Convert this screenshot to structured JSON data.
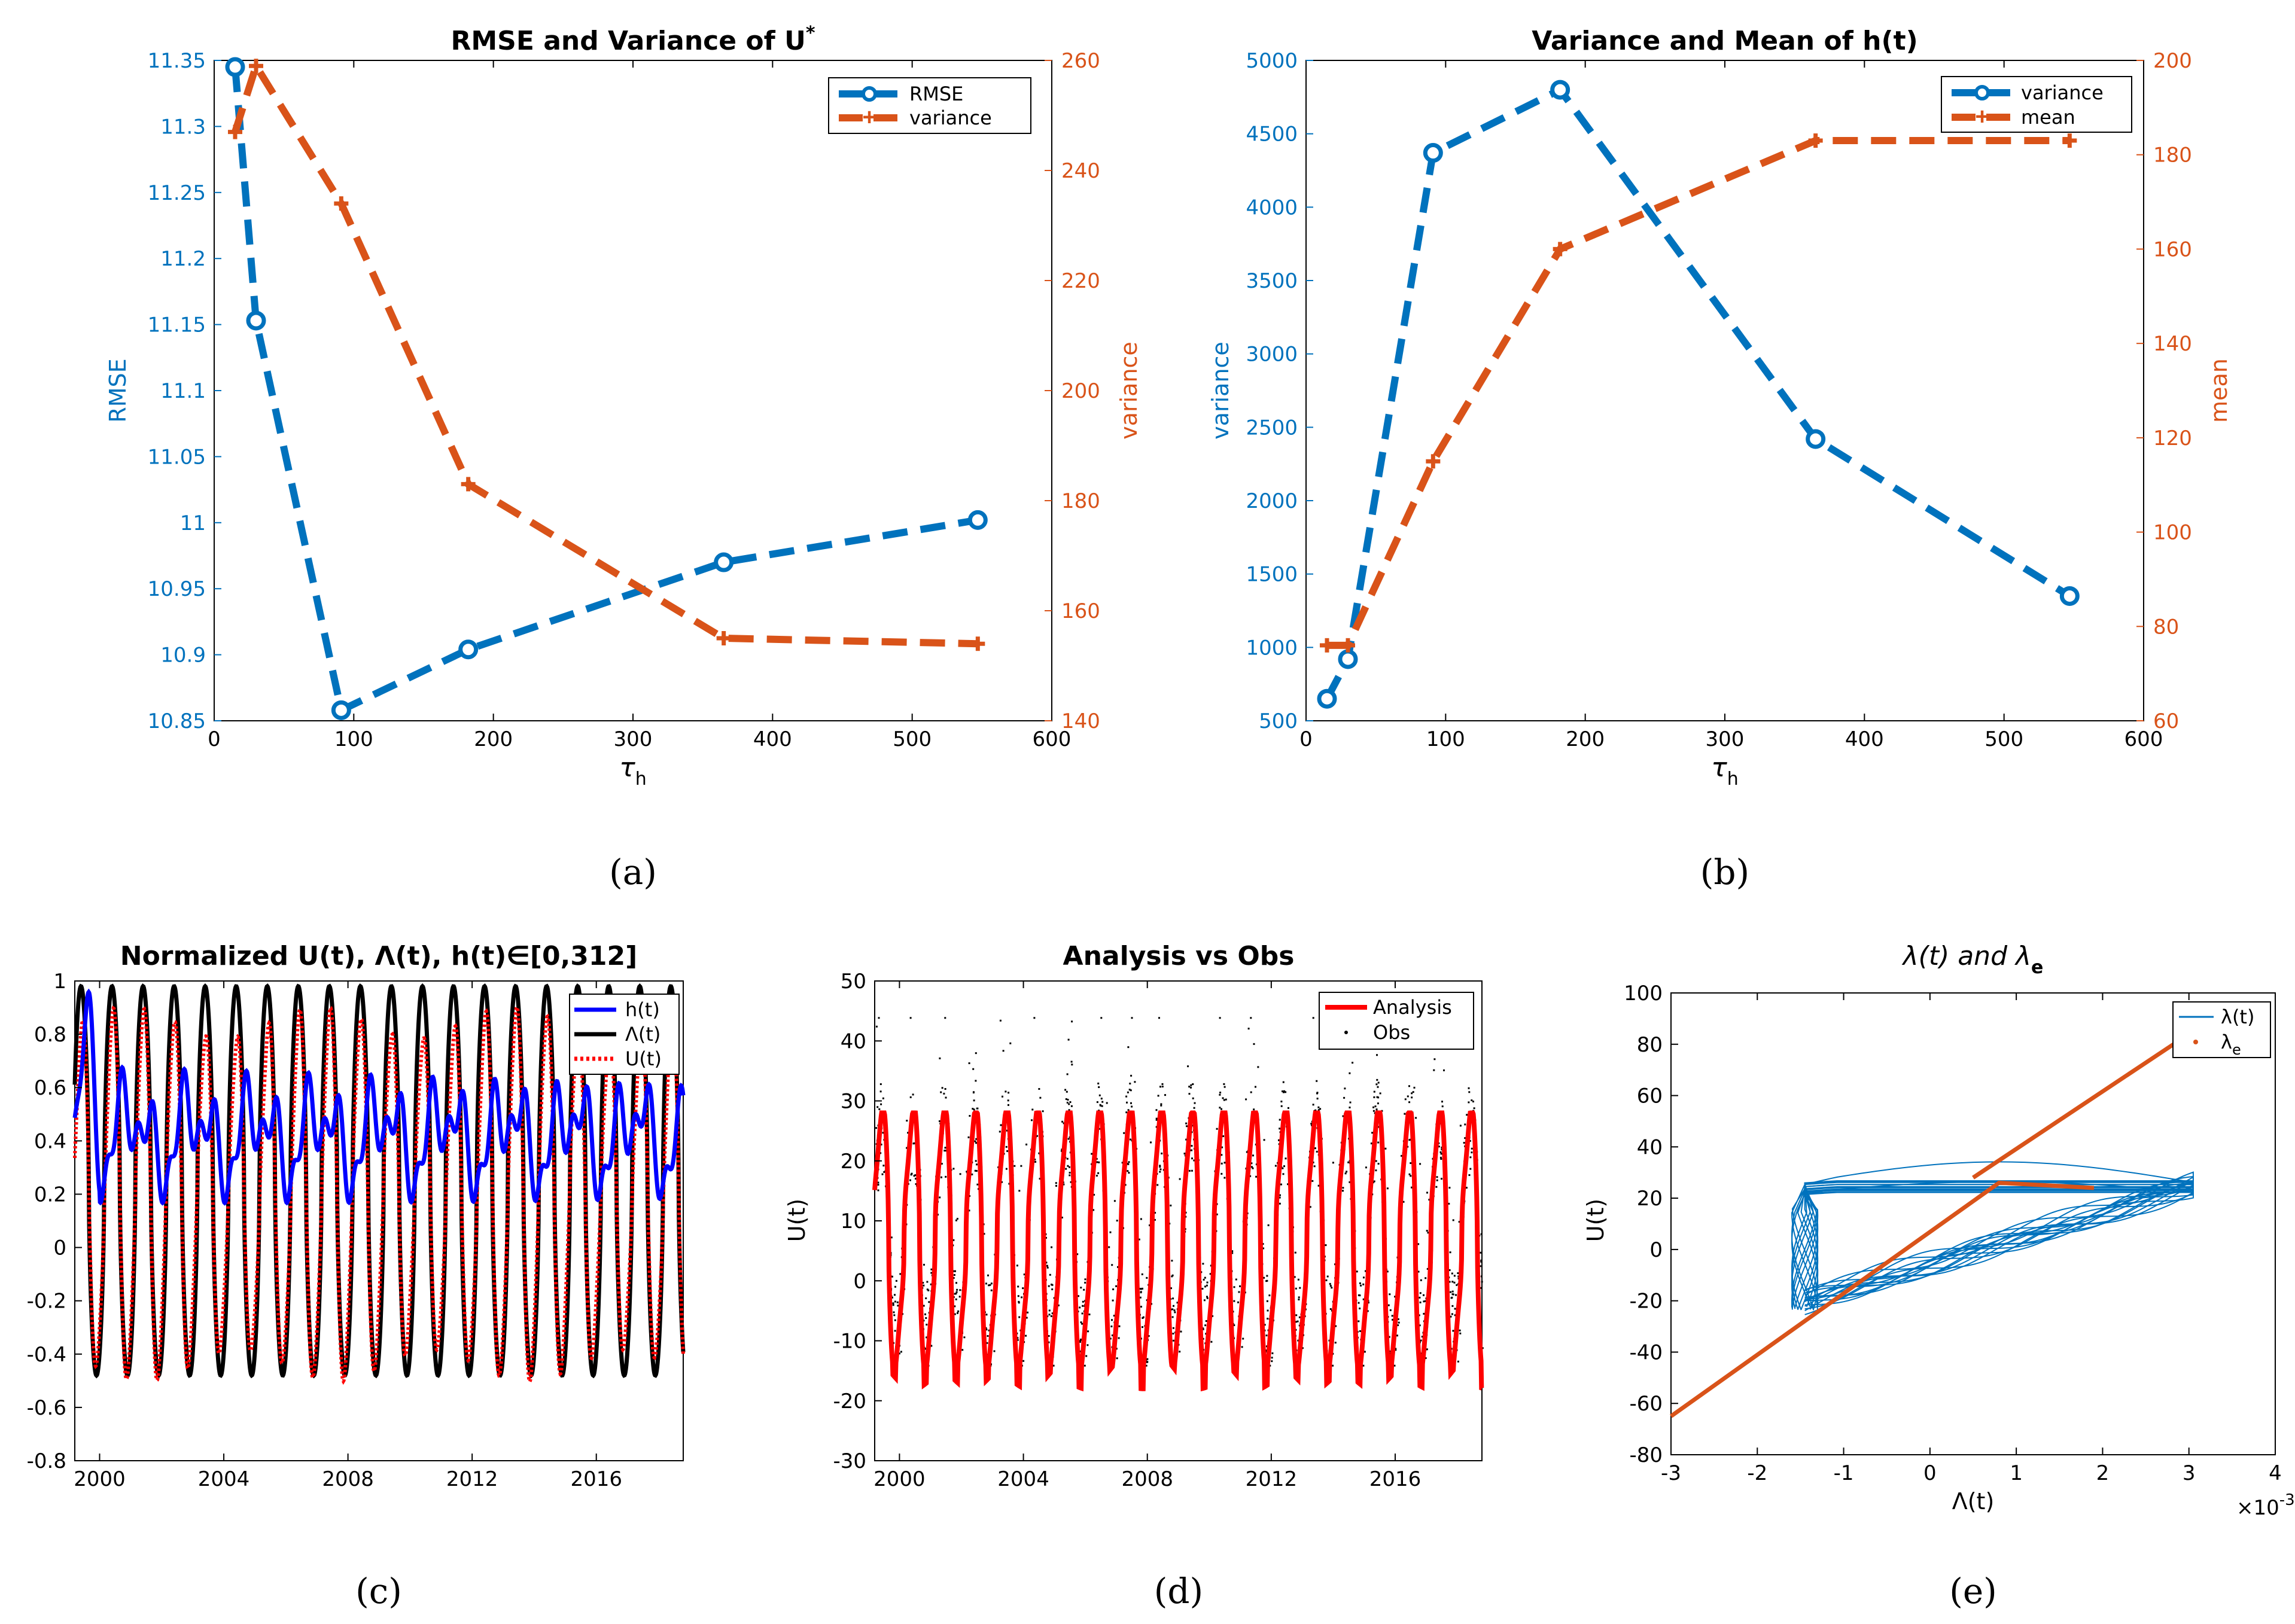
{
  "colors": {
    "blue": "#0072BD",
    "orange": "#D95319",
    "red": "#FF0000",
    "black": "#000000",
    "hblue": "#0000FF",
    "axis": "#000000"
  },
  "captions": {
    "a": "(a)",
    "b": "(b)",
    "c": "(c)",
    "d": "(d)",
    "e": "(e)"
  },
  "chart_data": [
    {
      "id": "a",
      "type": "line",
      "title": "RMSE and Variance of U",
      "title_sup": "*",
      "xlabel": "τ",
      "xlabel_sub": "h",
      "ylabel_left": "RMSE",
      "ylabel_right": "variance",
      "xlim": [
        0,
        600
      ],
      "ylim_left": [
        10.85,
        11.35
      ],
      "ylim_right": [
        140,
        260
      ],
      "xticks": [
        0,
        100,
        200,
        300,
        400,
        500,
        600
      ],
      "yticks_left": [
        10.85,
        10.9,
        10.95,
        11,
        11.05,
        11.1,
        11.15,
        11.2,
        11.25,
        11.3,
        11.35
      ],
      "yticks_right": [
        140,
        160,
        180,
        200,
        220,
        240,
        260
      ],
      "legend": [
        "RMSE",
        "variance"
      ],
      "series": [
        {
          "name": "RMSE",
          "axis": "left",
          "x": [
            15,
            30,
            91,
            182,
            365,
            547
          ],
          "y": [
            11.345,
            11.153,
            10.858,
            10.904,
            10.97,
            11.002
          ]
        },
        {
          "name": "variance",
          "axis": "right",
          "x": [
            15,
            30,
            91,
            182,
            365,
            547
          ],
          "y": [
            247,
            259,
            234,
            183,
            155,
            154
          ]
        }
      ]
    },
    {
      "id": "b",
      "type": "line",
      "title": "Variance and Mean of h(t)",
      "xlabel": "τ",
      "xlabel_sub": "h",
      "ylabel_left": "variance",
      "ylabel_right": "mean",
      "xlim": [
        0,
        600
      ],
      "ylim_left": [
        500,
        5000
      ],
      "ylim_right": [
        60,
        200
      ],
      "xticks": [
        0,
        100,
        200,
        300,
        400,
        500,
        600
      ],
      "yticks_left": [
        500,
        1000,
        1500,
        2000,
        2500,
        3000,
        3500,
        4000,
        4500,
        5000
      ],
      "yticks_right": [
        60,
        80,
        100,
        120,
        140,
        160,
        180,
        200
      ],
      "legend": [
        "variance",
        "mean"
      ],
      "series": [
        {
          "name": "variance",
          "axis": "left",
          "x": [
            15,
            30,
            91,
            182,
            365,
            547
          ],
          "y": [
            650,
            920,
            4370,
            4800,
            2420,
            1350
          ]
        },
        {
          "name": "mean",
          "axis": "right",
          "x": [
            15,
            30,
            91,
            182,
            365,
            547
          ],
          "y": [
            76,
            76,
            115,
            160,
            183,
            183
          ]
        }
      ]
    },
    {
      "id": "c",
      "type": "line",
      "title": "Normalized U(t), Λ(t), h(t)∈[0,312]",
      "xlabel": "",
      "ylabel": "",
      "xlim": [
        1999.2,
        2018.8
      ],
      "ylim": [
        -0.8,
        1
      ],
      "xticks": [
        2000,
        2004,
        2008,
        2012,
        2016
      ],
      "yticks": [
        -0.8,
        -0.6,
        -0.4,
        -0.2,
        0,
        0.2,
        0.4,
        0.6,
        0.8,
        1
      ],
      "legend": [
        "h(t)",
        "Λ(t)",
        "U(t)"
      ]
    },
    {
      "id": "d",
      "type": "line",
      "title": "Analysis vs Obs",
      "xlabel": "",
      "ylabel": "U(t)",
      "xlim": [
        1999.2,
        2018.8
      ],
      "ylim": [
        -30,
        50
      ],
      "xticks": [
        2000,
        2004,
        2008,
        2012,
        2016
      ],
      "yticks": [
        -30,
        -20,
        -10,
        0,
        10,
        20,
        30,
        40,
        50
      ],
      "legend": [
        "Analysis",
        "Obs"
      ]
    },
    {
      "id": "e",
      "type": "line",
      "title": "λ(t) and λ",
      "title_sub": "e",
      "xlabel": "Λ(t)",
      "ylabel": "U(t)",
      "xlim": [
        -3,
        4
      ],
      "ylim": [
        -80,
        100
      ],
      "xticks": [
        -3,
        -2,
        -1,
        0,
        1,
        2,
        3,
        4
      ],
      "yticks": [
        -80,
        -60,
        -40,
        -20,
        0,
        20,
        40,
        60,
        80,
        100
      ],
      "x_multiplier": "×10",
      "x_multiplier_exp": "-3",
      "legend": [
        "λ(t)",
        "λ"
      ],
      "legend_sub": "e",
      "lambda_e": {
        "x": [
          -3,
          0.8,
          0.8,
          1.9
        ],
        "y": [
          -65,
          26,
          26,
          24
        ]
      },
      "lambda_e_upper": {
        "x": [
          0.5,
          3.0
        ],
        "y": [
          28,
          84
        ]
      }
    }
  ]
}
